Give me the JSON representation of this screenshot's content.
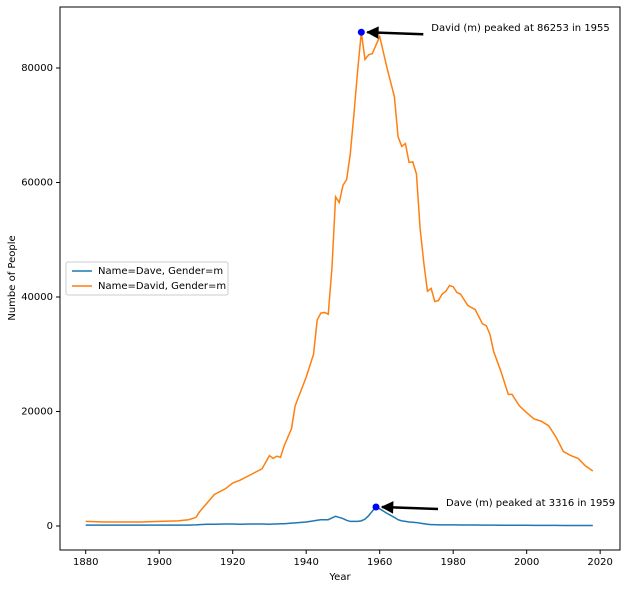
{
  "chart_data": {
    "type": "line",
    "xlabel": "Year",
    "ylabel": "Numbe of People",
    "x": [
      1880,
      1885,
      1890,
      1895,
      1900,
      1905,
      1908,
      1910,
      1911,
      1913,
      1915,
      1918,
      1920,
      1922,
      1925,
      1928,
      1930,
      1931,
      1932,
      1933,
      1934,
      1936,
      1937,
      1940,
      1942,
      1943,
      1944,
      1945,
      1946,
      1947,
      1948,
      1949,
      1950,
      1951,
      1952,
      1953,
      1954,
      1955,
      1956,
      1957,
      1958,
      1959,
      1960,
      1962,
      1964,
      1965,
      1966,
      1967,
      1968,
      1969,
      1970,
      1971,
      1972,
      1973,
      1974,
      1975,
      1976,
      1977,
      1978,
      1979,
      1980,
      1981,
      1982,
      1984,
      1986,
      1988,
      1989,
      1990,
      1991,
      1993,
      1995,
      1996,
      1998,
      2000,
      2002,
      2004,
      2006,
      2008,
      2010,
      2012,
      2014,
      2016,
      2018
    ],
    "series": [
      {
        "name": "Name=Dave, Gender=m",
        "color": "#1f77b4",
        "values": [
          150,
          150,
          150,
          150,
          150,
          150,
          150,
          200,
          250,
          300,
          300,
          350,
          350,
          300,
          350,
          350,
          300,
          350,
          350,
          400,
          400,
          500,
          550,
          700,
          900,
          1000,
          1100,
          1100,
          1100,
          1400,
          1700,
          1500,
          1300,
          1000,
          800,
          800,
          800,
          900,
          1200,
          1800,
          2600,
          3316,
          3000,
          2200,
          1500,
          1100,
          900,
          800,
          700,
          650,
          600,
          500,
          400,
          300,
          250,
          250,
          200,
          200,
          200,
          200,
          200,
          200,
          180,
          180,
          170,
          160,
          160,
          150,
          150,
          140,
          130,
          130,
          120,
          120,
          110,
          110,
          100,
          100,
          90,
          90,
          80,
          80,
          80
        ]
      },
      {
        "name": "Name=David, Gender=m",
        "color": "#ff7f0e",
        "values": [
          800,
          700,
          700,
          700,
          800,
          900,
          1100,
          1500,
          2500,
          4000,
          5500,
          6500,
          7500,
          8000,
          9000,
          10000,
          12300,
          11800,
          12200,
          12000,
          14000,
          17000,
          21000,
          26000,
          30000,
          36000,
          37200,
          37300,
          37000,
          45000,
          57500,
          56500,
          59500,
          60500,
          65000,
          72000,
          79500,
          86253,
          81500,
          82300,
          82500,
          84000,
          85500,
          80000,
          75000,
          68000,
          66300,
          66800,
          63500,
          63600,
          61500,
          52000,
          46000,
          41000,
          41500,
          39200,
          39400,
          40500,
          41000,
          42000,
          41800,
          40800,
          40500,
          38500,
          37800,
          35300,
          35000,
          33500,
          30500,
          27000,
          23000,
          23000,
          21000,
          19800,
          18700,
          18300,
          17500,
          15500,
          13000,
          12300,
          11800,
          10500,
          9600
        ]
      }
    ],
    "annotations": [
      {
        "text": "David (m) peaked at 86253 in 1955",
        "x": 1955,
        "y": 86253
      },
      {
        "text": "Dave (m) peaked at 3316 in 1959",
        "x": 1959,
        "y": 3316
      }
    ],
    "marker_color": "#0000ff",
    "xlim": [
      1873,
      2025.4
    ],
    "ylim": [
      -4192,
      90655
    ],
    "xticks": [
      1880,
      1900,
      1920,
      1940,
      1960,
      1980,
      2000,
      2020
    ],
    "yticks": [
      0,
      20000,
      40000,
      60000,
      80000
    ],
    "legend_loc": "center left"
  }
}
